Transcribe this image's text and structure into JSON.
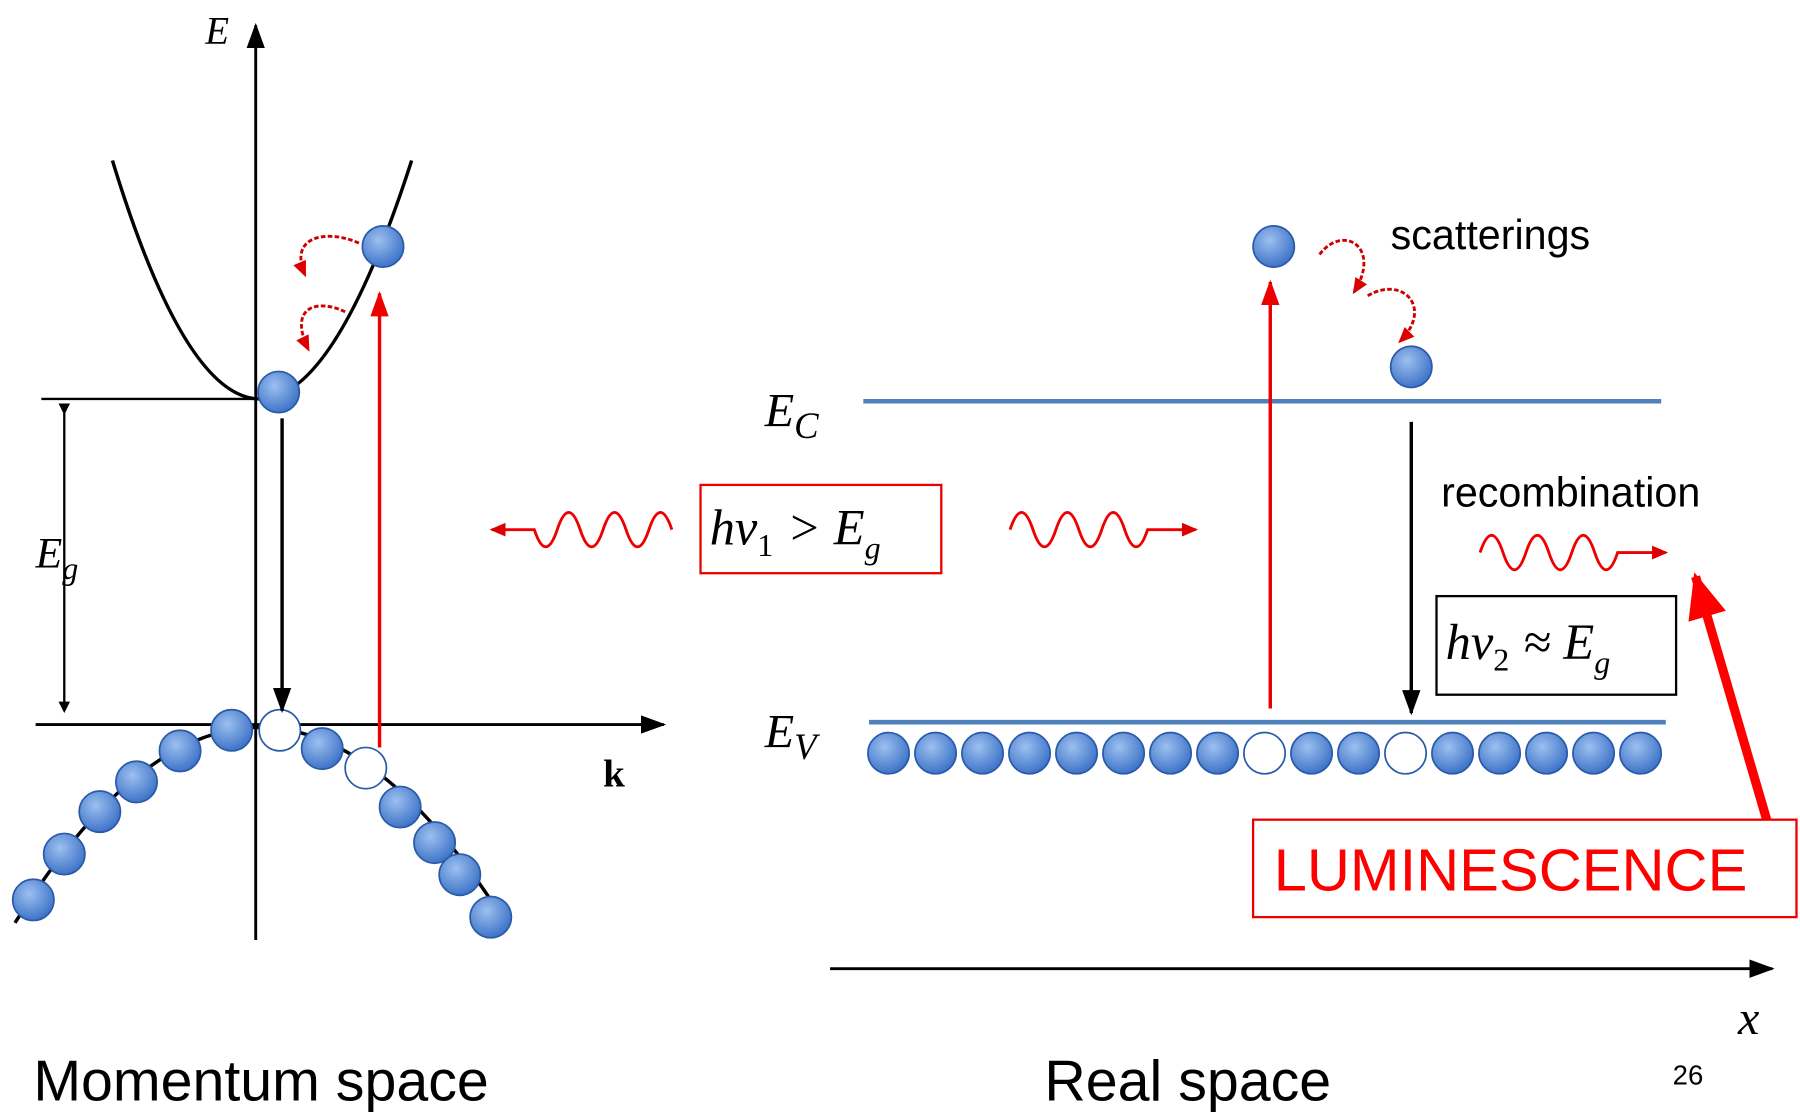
{
  "momentum_space": {
    "energy_axis_label": "E",
    "momentum_axis_label": "k",
    "gap_label": {
      "symbol": "E",
      "subscript": "g"
    },
    "caption": "Momentum space"
  },
  "real_space": {
    "conduction_label": {
      "symbol": "E",
      "subscript": "C"
    },
    "valence_label": {
      "symbol": "E",
      "subscript": "V"
    },
    "absorbed_photon": {
      "symbol": "hν",
      "subscript": "1",
      "relation": "> E",
      "relation_subscript": "g"
    },
    "scatterings_label": "scatterings",
    "recombination_label": "recombination",
    "emitted_photon": {
      "symbol": "hν",
      "subscript": "2",
      "relation": "≈ E",
      "relation_subscript": "g"
    },
    "luminescence_label": "LUMINESCENCE",
    "position_axis_label": "x",
    "caption": "Real space"
  },
  "page_number": "26"
}
